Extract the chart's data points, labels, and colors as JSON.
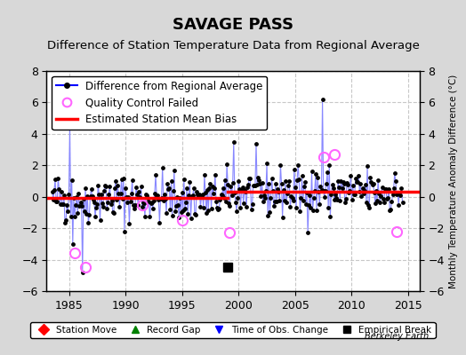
{
  "title": "SAVAGE PASS",
  "subtitle": "Difference of Station Temperature Data from Regional Average",
  "ylabel_right": "Monthly Temperature Anomaly Difference (°C)",
  "xlabel_bottom": "",
  "watermark": "Berkeley Earth",
  "xlim": [
    1983,
    2016
  ],
  "ylim": [
    -6,
    8
  ],
  "yticks": [
    -6,
    -4,
    -2,
    0,
    2,
    4,
    6,
    8
  ],
  "xticks": [
    1985,
    1990,
    1995,
    2000,
    2005,
    2010,
    2015
  ],
  "bias_segment1": {
    "x": [
      1983,
      1999.0
    ],
    "y": [
      -0.1,
      -0.1
    ]
  },
  "bias_segment2": {
    "x": [
      1999.0,
      2016
    ],
    "y": [
      0.3,
      0.3
    ]
  },
  "empirical_break_x": 1999.0,
  "empirical_break_y": -4.5,
  "qc_failed_points": [
    [
      1985.5,
      -3.6
    ],
    [
      1986.4,
      -4.5
    ],
    [
      1991.5,
      -0.5
    ],
    [
      1995.0,
      -1.5
    ],
    [
      1999.2,
      -2.3
    ],
    [
      2007.5,
      2.5
    ],
    [
      2008.5,
      2.7
    ],
    [
      2014.0,
      -2.2
    ]
  ],
  "bg_color": "#d8d8d8",
  "plot_bg_color": "#ffffff",
  "grid_color": "#c8c8c8",
  "line_color": "#0000ff",
  "line_color_light": "#8888ff",
  "dot_color": "#000000",
  "bias_color": "#ff0000",
  "qc_color": "#ff66ff",
  "title_fontsize": 13,
  "subtitle_fontsize": 9.5,
  "tick_fontsize": 9,
  "legend_fontsize": 8.5,
  "seed": 42,
  "n_points": 360,
  "start_year": 1983.5,
  "end_year": 2014.5
}
